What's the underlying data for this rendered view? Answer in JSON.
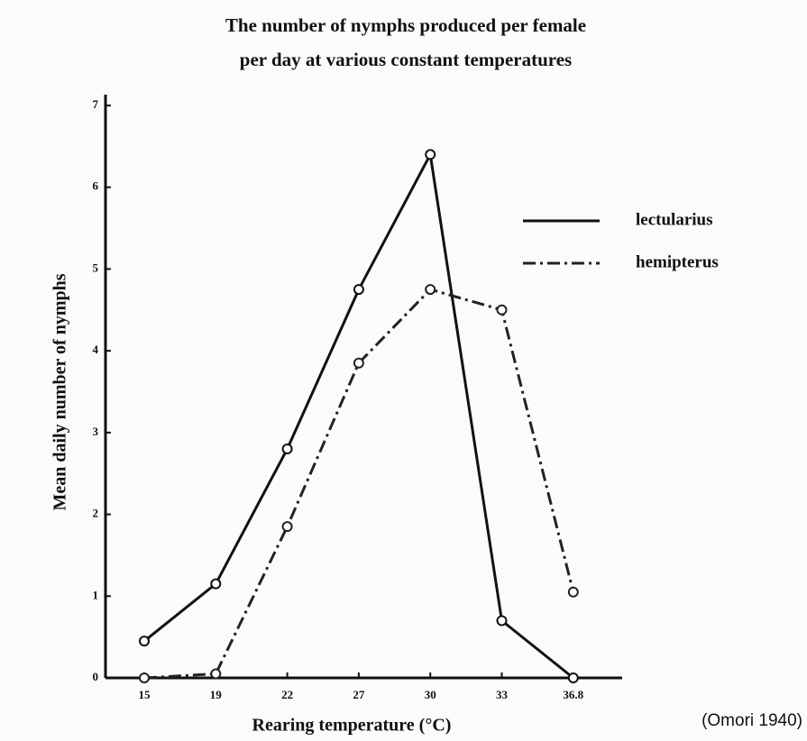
{
  "chart_data": {
    "type": "line",
    "title": [
      "The number of nymphs produced per female",
      "per day at various constant temperatures"
    ],
    "x_label": "Rearing temperature (°C)",
    "y_label": "Mean daily number of nymphs",
    "annotation": "(Omori 1940)",
    "categories": [
      "15",
      "19",
      "22",
      "27",
      "30",
      "33",
      "36.8"
    ],
    "series": [
      {
        "name": "lectularius",
        "color": "#111111",
        "dash": false,
        "values": [
          0.45,
          1.15,
          2.8,
          4.75,
          6.4,
          0.7,
          0.0
        ]
      },
      {
        "name": "hemipterus",
        "color": "#222222",
        "dash": true,
        "values": [
          0.0,
          0.05,
          1.85,
          3.85,
          4.75,
          4.5,
          1.05
        ]
      }
    ],
    "ylim": [
      0,
      7
    ],
    "yticks": [
      0,
      1,
      2,
      3,
      4,
      5,
      6,
      7
    ],
    "legend": "upper right",
    "grid": false
  }
}
